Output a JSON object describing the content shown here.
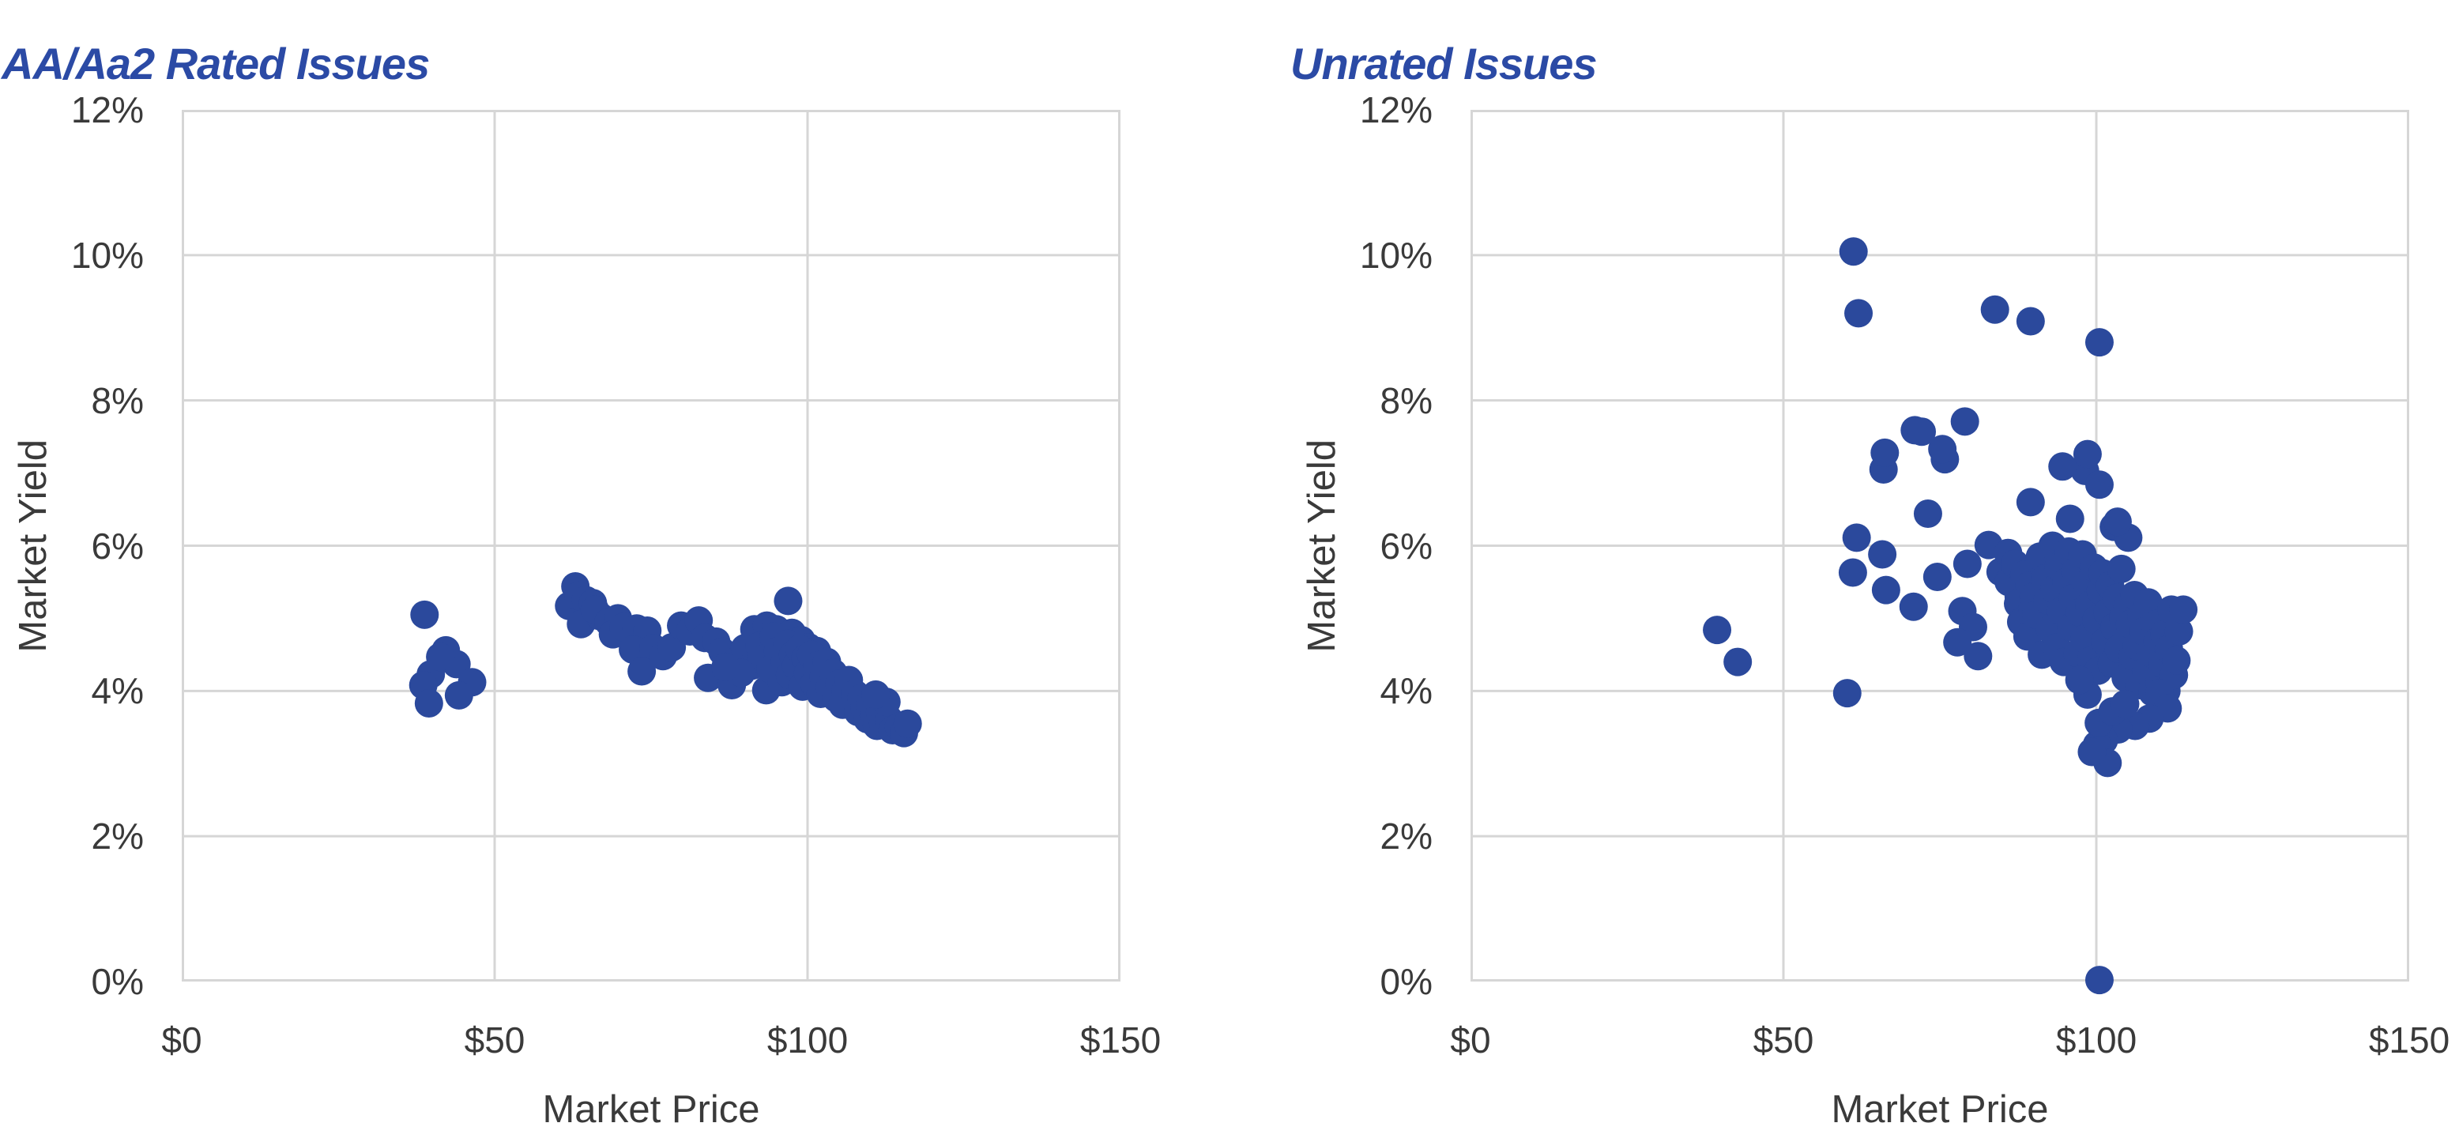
{
  "page": {
    "background": "#ffffff"
  },
  "colors": {
    "marker": "#2b499c",
    "title": "#2b4aa5",
    "grid": "#d6d6d6",
    "axis_text": "#3a3a3a"
  },
  "chart_data": [
    {
      "type": "scatter",
      "title": "AA/Aa2 Rated Issues",
      "xlabel": "Market Price",
      "ylabel": "Market Yield",
      "xlim": [
        0,
        150
      ],
      "ylim": [
        0,
        12
      ],
      "grid": true,
      "legend": "none",
      "x_tick_values": [
        0,
        50,
        100,
        150
      ],
      "x_tick_labels": [
        "$0",
        "$50",
        "$100",
        "$150"
      ],
      "y_tick_values": [
        0,
        2,
        4,
        6,
        8,
        10,
        12
      ],
      "y_tick_labels": [
        "0%",
        "2%",
        "4%",
        "6%",
        "8%",
        "10%",
        "12%"
      ],
      "marker_color": "#2b499c",
      "marker_radius_px": 18,
      "points": [
        [
          38.8,
          5.05
        ],
        [
          42.2,
          4.56
        ],
        [
          39.8,
          4.23
        ],
        [
          43.9,
          4.37
        ],
        [
          38.6,
          4.08
        ],
        [
          46.4,
          4.12
        ],
        [
          39.5,
          3.83
        ],
        [
          44.3,
          3.94
        ],
        [
          41.3,
          4.47
        ],
        [
          61.9,
          5.17
        ],
        [
          62.9,
          5.44
        ],
        [
          63.4,
          5.31
        ],
        [
          64.6,
          5.25
        ],
        [
          65.7,
          5.21
        ],
        [
          63.8,
          4.92
        ],
        [
          66.8,
          5.03
        ],
        [
          66.0,
          5.12
        ],
        [
          68.2,
          4.95
        ],
        [
          69.7,
          5.0
        ],
        [
          68.9,
          4.78
        ],
        [
          70.6,
          4.88
        ],
        [
          72.7,
          4.86
        ],
        [
          74.4,
          4.83
        ],
        [
          72.1,
          4.57
        ],
        [
          75.4,
          4.59
        ],
        [
          73.5,
          4.27
        ],
        [
          76.9,
          4.48
        ],
        [
          78.3,
          4.6
        ],
        [
          79.8,
          4.9
        ],
        [
          81.2,
          4.82
        ],
        [
          82.6,
          4.97
        ],
        [
          83.6,
          4.73
        ],
        [
          85.4,
          4.68
        ],
        [
          86.4,
          4.54
        ],
        [
          84.1,
          4.18
        ],
        [
          87.9,
          4.08
        ],
        [
          88.8,
          4.42
        ],
        [
          90.0,
          4.59
        ],
        [
          91.2,
          4.35
        ],
        [
          92.7,
          4.48
        ],
        [
          93.4,
          4.01
        ],
        [
          89.4,
          4.25
        ],
        [
          86.9,
          4.33
        ],
        [
          96.9,
          5.24
        ],
        [
          91.5,
          4.85
        ],
        [
          93.5,
          4.9
        ],
        [
          95.0,
          4.85
        ],
        [
          96.1,
          4.7
        ],
        [
          97.5,
          4.8
        ],
        [
          99.0,
          4.7
        ],
        [
          100.2,
          4.6
        ],
        [
          101.5,
          4.55
        ],
        [
          92.3,
          4.62
        ],
        [
          93.2,
          4.45
        ],
        [
          94.1,
          4.3
        ],
        [
          94.6,
          4.75
        ],
        [
          95.3,
          4.55
        ],
        [
          95.9,
          4.12
        ],
        [
          96.4,
          4.4
        ],
        [
          96.8,
          4.65
        ],
        [
          97.2,
          4.22
        ],
        [
          97.7,
          4.5
        ],
        [
          98.2,
          4.35
        ],
        [
          98.7,
          4.58
        ],
        [
          99.2,
          4.06
        ],
        [
          99.7,
          4.45
        ],
        [
          100.1,
          4.25
        ],
        [
          100.6,
          4.5
        ],
        [
          101.1,
          4.1
        ],
        [
          101.6,
          4.35
        ],
        [
          102.1,
          3.96
        ],
        [
          102.6,
          4.2
        ],
        [
          103.1,
          4.4
        ],
        [
          103.6,
          4.05
        ],
        [
          104.1,
          4.25
        ],
        [
          104.6,
          3.9
        ],
        [
          105.1,
          4.1
        ],
        [
          105.6,
          3.81
        ],
        [
          106.1,
          4.0
        ],
        [
          106.6,
          4.15
        ],
        [
          107.1,
          3.86
        ],
        [
          107.6,
          3.96
        ],
        [
          108.1,
          3.71
        ],
        [
          108.6,
          3.9
        ],
        [
          109.1,
          3.76
        ],
        [
          109.6,
          3.61
        ],
        [
          110.1,
          3.8
        ],
        [
          110.6,
          3.66
        ],
        [
          111.1,
          3.52
        ],
        [
          111.6,
          3.71
        ],
        [
          112.1,
          3.56
        ],
        [
          113.0,
          3.61
        ],
        [
          113.6,
          3.46
        ],
        [
          114.6,
          3.51
        ],
        [
          115.4,
          3.42
        ],
        [
          116.0,
          3.55
        ],
        [
          112.6,
          3.85
        ],
        [
          110.9,
          3.95
        ]
      ]
    },
    {
      "type": "scatter",
      "title": "Unrated Issues",
      "xlabel": "Market Price",
      "ylabel": "Market Yield",
      "xlim": [
        0,
        150
      ],
      "ylim": [
        0,
        12
      ],
      "grid": true,
      "legend": "none",
      "x_tick_values": [
        0,
        50,
        100,
        150
      ],
      "x_tick_labels": [
        "$0",
        "$50",
        "$100",
        "$150"
      ],
      "y_tick_values": [
        0,
        2,
        4,
        6,
        8,
        10,
        12
      ],
      "y_tick_labels": [
        "0%",
        "2%",
        "4%",
        "6%",
        "8%",
        "10%",
        "12%"
      ],
      "marker_color": "#2b499c",
      "marker_radius_px": 18,
      "points": [
        [
          61.2,
          10.05
        ],
        [
          62.0,
          9.2
        ],
        [
          83.8,
          9.25
        ],
        [
          89.5,
          9.09
        ],
        [
          100.5,
          8.8
        ],
        [
          71.0,
          7.59
        ],
        [
          72.1,
          7.57
        ],
        [
          79.0,
          7.71
        ],
        [
          75.8,
          7.19
        ],
        [
          66.0,
          7.05
        ],
        [
          98.2,
          7.03
        ],
        [
          66.2,
          7.28
        ],
        [
          75.4,
          7.33
        ],
        [
          94.6,
          7.09
        ],
        [
          98.6,
          7.26
        ],
        [
          73.1,
          6.44
        ],
        [
          89.5,
          6.6
        ],
        [
          95.8,
          6.37
        ],
        [
          100.5,
          6.84
        ],
        [
          102.8,
          6.26
        ],
        [
          105.1,
          6.11
        ],
        [
          103.4,
          6.33
        ],
        [
          61.7,
          6.11
        ],
        [
          65.8,
          5.88
        ],
        [
          61.1,
          5.63
        ],
        [
          66.4,
          5.39
        ],
        [
          70.8,
          5.16
        ],
        [
          74.6,
          5.57
        ],
        [
          79.4,
          5.75
        ],
        [
          82.8,
          6.01
        ],
        [
          84.7,
          5.64
        ],
        [
          78.6,
          5.1
        ],
        [
          80.3,
          4.88
        ],
        [
          77.8,
          4.67
        ],
        [
          81.1,
          4.48
        ],
        [
          87.6,
          5.3
        ],
        [
          85.9,
          5.9
        ],
        [
          39.4,
          4.84
        ],
        [
          42.7,
          4.4
        ],
        [
          60.2,
          3.97
        ],
        [
          86.0,
          5.5
        ],
        [
          87.0,
          5.75
        ],
        [
          87.5,
          5.2
        ],
        [
          88.0,
          4.95
        ],
        [
          88.5,
          5.6
        ],
        [
          89.0,
          4.75
        ],
        [
          89.3,
          5.45
        ],
        [
          89.8,
          5.14
        ],
        [
          90.0,
          5.3
        ],
        [
          90.4,
          5.05
        ],
        [
          91.0,
          5.85
        ],
        [
          91.3,
          4.5
        ],
        [
          91.8,
          5.55
        ],
        [
          92.2,
          5.25
        ],
        [
          92.6,
          4.85
        ],
        [
          93.0,
          6.0
        ],
        [
          93.3,
          5.4
        ],
        [
          93.7,
          4.6
        ],
        [
          94.0,
          5.72
        ],
        [
          94.4,
          5.1
        ],
        [
          94.8,
          4.4
        ],
        [
          95.2,
          5.5
        ],
        [
          95.6,
          5.92
        ],
        [
          96.0,
          4.88
        ],
        [
          96.3,
          5.28
        ],
        [
          96.7,
          5.65
        ],
        [
          97.0,
          4.52
        ],
        [
          97.4,
          5.08
        ],
        [
          97.8,
          5.88
        ],
        [
          98.1,
          4.72
        ],
        [
          98.5,
          5.48
        ],
        [
          98.9,
          5.18
        ],
        [
          99.2,
          4.42
        ],
        [
          99.6,
          5.7
        ],
        [
          100.0,
          4.98
        ],
        [
          100.3,
          4.28
        ],
        [
          100.7,
          5.38
        ],
        [
          101.0,
          5.62
        ],
        [
          101.4,
          4.68
        ],
        [
          101.8,
          5.08
        ],
        [
          102.2,
          5.45
        ],
        [
          102.5,
          4.38
        ],
        [
          102.9,
          4.88
        ],
        [
          103.3,
          5.28
        ],
        [
          103.6,
          4.58
        ],
        [
          104.0,
          5.68
        ],
        [
          104.3,
          5.02
        ],
        [
          104.7,
          4.18
        ],
        [
          105.0,
          5.18
        ],
        [
          105.4,
          4.92
        ],
        [
          105.8,
          4.48
        ],
        [
          106.1,
          5.32
        ],
        [
          106.5,
          4.62
        ],
        [
          106.9,
          4.08
        ],
        [
          107.2,
          5.02
        ],
        [
          107.6,
          4.82
        ],
        [
          108.0,
          4.28
        ],
        [
          108.3,
          5.22
        ],
        [
          108.7,
          4.52
        ],
        [
          109.0,
          3.98
        ],
        [
          109.4,
          4.92
        ],
        [
          109.8,
          4.68
        ],
        [
          110.1,
          4.12
        ],
        [
          110.5,
          4.38
        ],
        [
          110.9,
          4.78
        ],
        [
          111.2,
          4.0
        ],
        [
          111.6,
          4.58
        ],
        [
          112.0,
          5.12
        ],
        [
          112.4,
          4.22
        ],
        [
          112.8,
          4.42
        ],
        [
          113.2,
          4.82
        ],
        [
          113.9,
          5.12
        ],
        [
          110.1,
          3.97
        ],
        [
          111.4,
          3.76
        ],
        [
          108.5,
          3.62
        ],
        [
          106.2,
          3.52
        ],
        [
          103.5,
          3.47
        ],
        [
          101.2,
          3.32
        ],
        [
          100.1,
          3.26
        ],
        [
          101.8,
          3.01
        ],
        [
          99.3,
          3.16
        ],
        [
          100.4,
          3.56
        ],
        [
          102.6,
          3.72
        ],
        [
          104.6,
          3.82
        ],
        [
          98.6,
          3.95
        ],
        [
          97.3,
          4.15
        ],
        [
          100.5,
          0.02
        ]
      ]
    }
  ]
}
